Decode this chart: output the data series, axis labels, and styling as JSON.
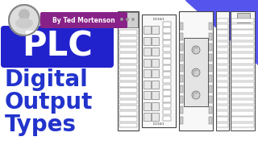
{
  "bg_color": "#ffffff",
  "accent_color": "#4444dd",
  "plc_bg": "#2222cc",
  "plc_text": "#ffffff",
  "subtitle_color": "#2233cc",
  "byline_bg": "#882288",
  "byline_color": "#ffffff",
  "byline_text": "By Ted Mortenson",
  "title": "PLC",
  "sub1": "Digital",
  "sub2": "Output",
  "sub3": "Types",
  "triangle_color": "#5555ee",
  "mod_face": "#f8f8f8",
  "mod_edge": "#444444",
  "term_face": "#ffffff",
  "term_edge": "#777777",
  "dark_section": "#cccccc"
}
